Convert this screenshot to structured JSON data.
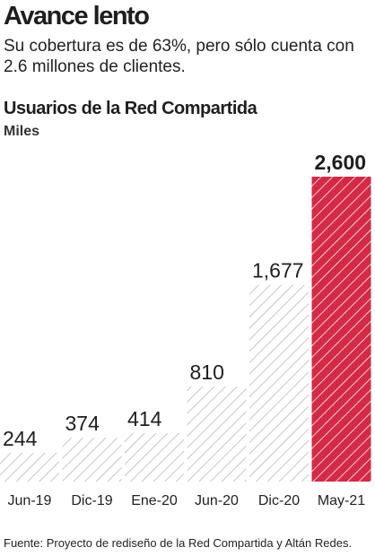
{
  "header": {
    "title": "Avance lento",
    "subtitle": "Su cobertura es de 63%, pero sólo cuenta con 2.6 millones de clientes."
  },
  "chart_data": {
    "type": "bar",
    "title": "Usuarios de la Red Compartida",
    "unit": "Miles",
    "categories": [
      "Jun-19",
      "Dic-19",
      "Ene-20",
      "Jun-20",
      "Dic-20",
      "May-21"
    ],
    "values": [
      244,
      374,
      414,
      810,
      1677,
      2600
    ],
    "value_labels": [
      "244",
      "374",
      "414",
      "810",
      "1,677",
      "2,600"
    ],
    "highlight_index": 5,
    "ylim": [
      0,
      2600
    ],
    "grid": false,
    "colors": {
      "highlight": "#d42a45",
      "hatch": "#b8b8b8",
      "text": "#1e1e1e"
    }
  },
  "footer": {
    "source": "Fuente: Proyecto de rediseño de la Red Compartida y Altán Redes."
  }
}
